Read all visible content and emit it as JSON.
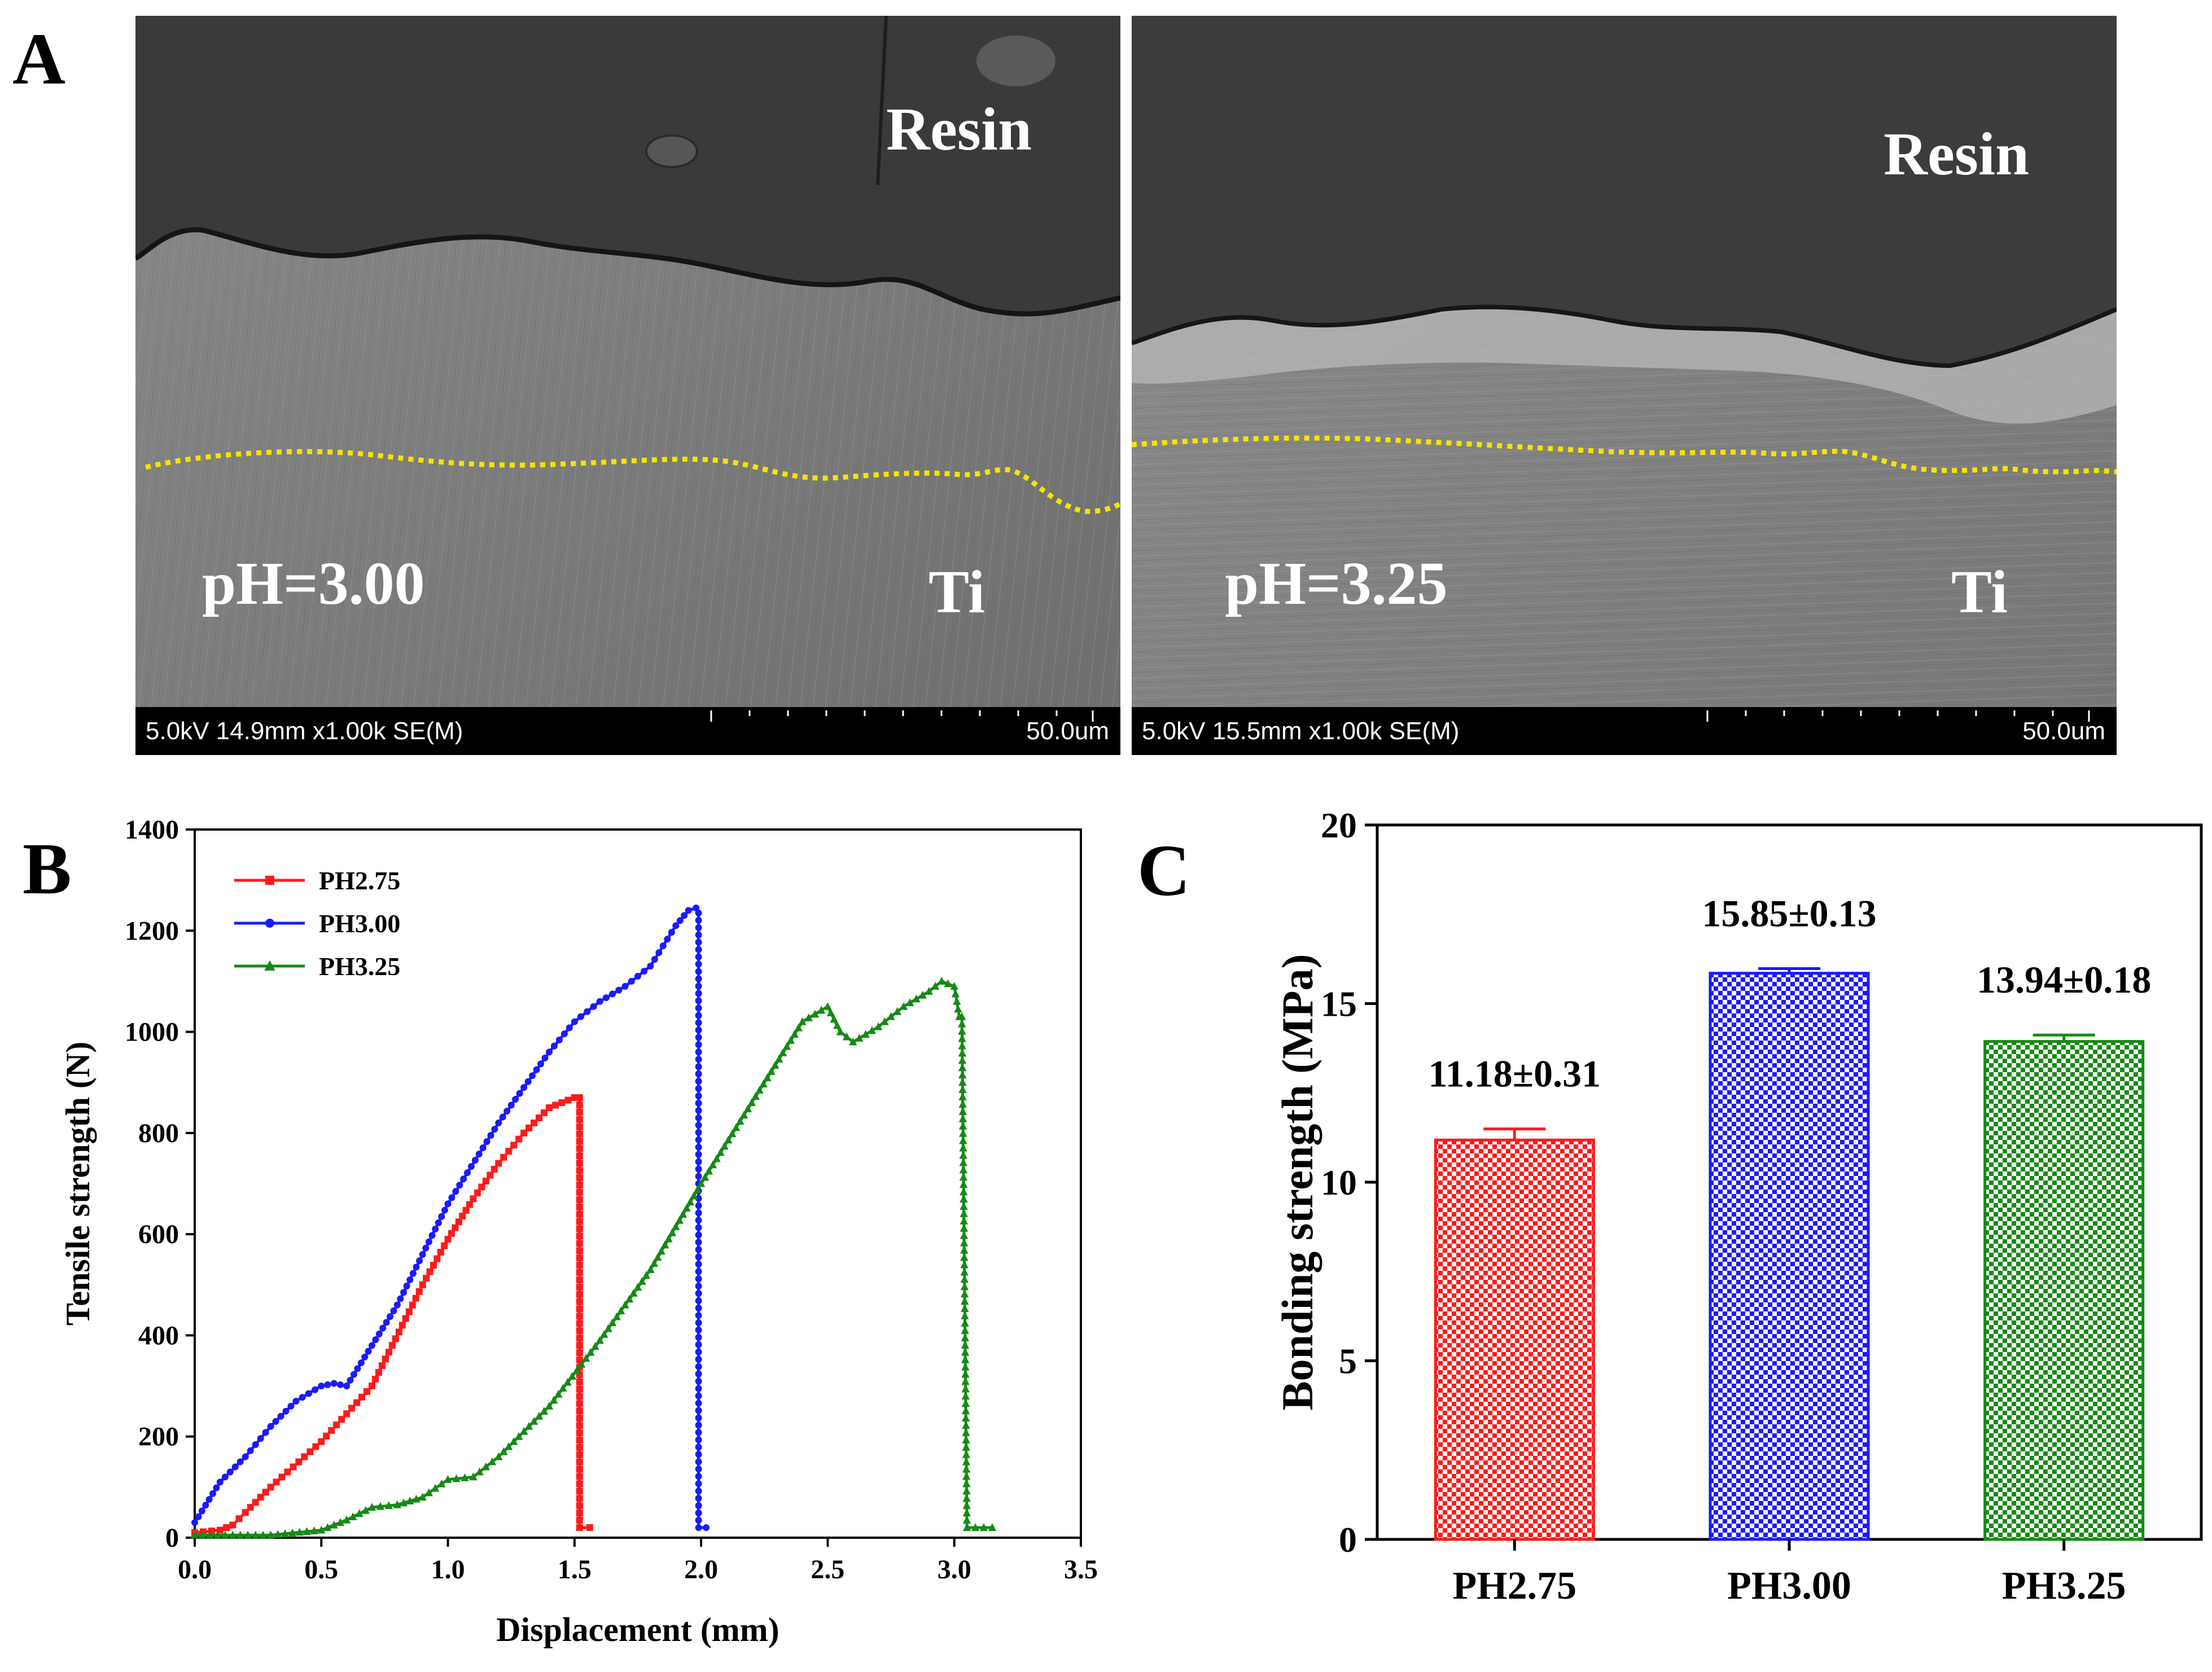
{
  "panels": {
    "a": {
      "letter": "A",
      "images": [
        {
          "top_label": "Resin",
          "ph_label": "pH=3.00",
          "bottom_label": "Ti",
          "scale_info": "5.0kV 14.9mm x1.00k SE(M)",
          "scale_bar": "50.0um"
        },
        {
          "top_label": "Resin",
          "ph_label": "pH=3.25",
          "bottom_label": "Ti",
          "scale_info": "5.0kV 15.5mm x1.00k SE(M)",
          "scale_bar": "50.0um"
        }
      ]
    },
    "b": {
      "letter": "B"
    },
    "c": {
      "letter": "C"
    }
  },
  "colors": {
    "red": "#ff1a1a",
    "blue": "#1a1aff",
    "green": "#158a15",
    "interface_line": "#f5e400"
  },
  "chart_data": [
    {
      "type": "line",
      "title": "",
      "xlabel": "Displacement (mm)",
      "ylabel": "Tensile strength (N)",
      "xlim": [
        0,
        3.5
      ],
      "ylim": [
        0,
        1400
      ],
      "xticks": [
        "0.0",
        "0.5",
        "1.0",
        "1.5",
        "2.0",
        "2.5",
        "3.0",
        "3.5"
      ],
      "yticks": [
        "0",
        "200",
        "400",
        "600",
        "800",
        "1000",
        "1200",
        "1400"
      ],
      "legend_position": "top-left",
      "series": [
        {
          "name": "PH2.75",
          "color": "#ff1a1a",
          "marker": "square",
          "x": [
            0,
            0.1,
            0.15,
            0.2,
            0.3,
            0.5,
            0.7,
            0.9,
            1.0,
            1.1,
            1.2,
            1.3,
            1.4,
            1.5,
            1.52,
            1.52,
            1.56
          ],
          "y": [
            10,
            15,
            25,
            50,
            100,
            190,
            300,
            500,
            590,
            670,
            740,
            800,
            850,
            870,
            870,
            20,
            20
          ]
        },
        {
          "name": "PH3.00",
          "color": "#1a1aff",
          "marker": "circle",
          "x": [
            0,
            0.1,
            0.2,
            0.3,
            0.4,
            0.5,
            0.55,
            0.6,
            0.7,
            0.8,
            0.9,
            1.0,
            1.2,
            1.4,
            1.5,
            1.6,
            1.7,
            1.8,
            1.85,
            1.9,
            1.95,
            1.98,
            1.99,
            1.99,
            2.02
          ],
          "y": [
            30,
            110,
            160,
            220,
            270,
            300,
            305,
            300,
            380,
            460,
            560,
            660,
            820,
            960,
            1020,
            1060,
            1090,
            1130,
            1170,
            1210,
            1240,
            1245,
            1235,
            20,
            20
          ]
        },
        {
          "name": "PH3.25",
          "color": "#158a15",
          "marker": "triangle",
          "x": [
            0,
            0.3,
            0.5,
            0.6,
            0.7,
            0.8,
            0.9,
            1.0,
            1.1,
            1.2,
            1.4,
            1.6,
            1.8,
            2.0,
            2.2,
            2.4,
            2.5,
            2.55,
            2.6,
            2.7,
            2.8,
            2.9,
            2.95,
            3.0,
            3.02,
            3.03,
            3.05,
            3.15
          ],
          "y": [
            5,
            5,
            15,
            35,
            60,
            65,
            80,
            115,
            120,
            160,
            260,
            390,
            530,
            700,
            860,
            1020,
            1050,
            1000,
            980,
            1010,
            1050,
            1080,
            1100,
            1090,
            1030,
            1030,
            20,
            20
          ]
        }
      ]
    },
    {
      "type": "bar",
      "title": "",
      "xlabel": "",
      "ylabel": "Bonding strength (MPa)",
      "ylim": [
        0,
        20
      ],
      "yticks": [
        "0",
        "5",
        "10",
        "15",
        "20"
      ],
      "categories": [
        "PH2.75",
        "PH3.00",
        "PH3.25"
      ],
      "values": [
        11.18,
        15.85,
        13.94
      ],
      "errors": [
        0.31,
        0.13,
        0.18
      ],
      "value_labels": [
        "11.18±0.31",
        "15.85±0.13",
        "13.94±0.18"
      ],
      "colors": [
        "#ff1a1a",
        "#1a1aff",
        "#158a15"
      ]
    }
  ]
}
